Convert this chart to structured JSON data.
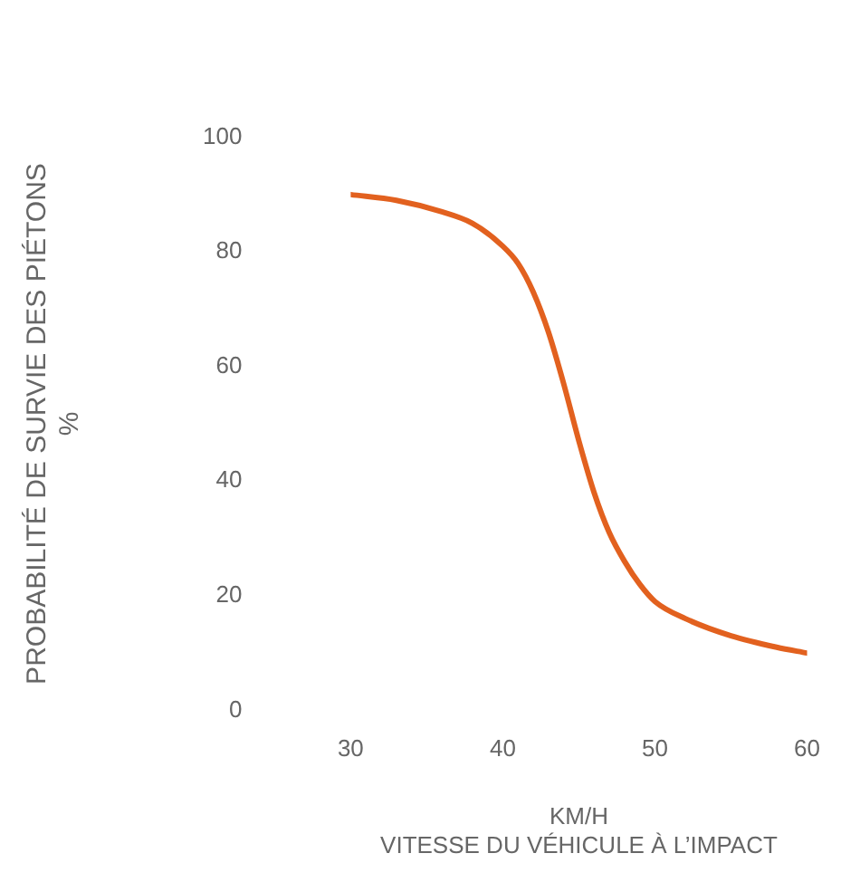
{
  "chart_data": {
    "type": "line",
    "xlabel": "KM/H\nVITESSE DU VÉHICULE À L’IMPACT",
    "ylabel": "PROBABILITÉ DE SURVIE DES PIÉTONS\n%",
    "x": [
      30,
      33,
      36,
      38,
      40,
      41,
      42,
      43,
      44,
      45,
      46,
      47,
      48,
      49,
      50,
      52,
      55,
      58,
      60
    ],
    "series": [
      {
        "color": "#e2611f",
        "values": [
          90,
          89,
          87,
          85,
          81,
          78,
          73,
          66,
          57,
          47,
          38,
          31,
          26,
          22,
          19,
          16,
          13,
          11,
          10
        ]
      }
    ],
    "xlim": [
      30,
      60
    ],
    "xticks": [
      30,
      40,
      50,
      60
    ],
    "ylim": [
      0,
      100
    ],
    "yticks": [
      0,
      20,
      40,
      60,
      80,
      100
    ],
    "grid": false,
    "legend": false,
    "marker": "none",
    "line_style": "solid"
  }
}
